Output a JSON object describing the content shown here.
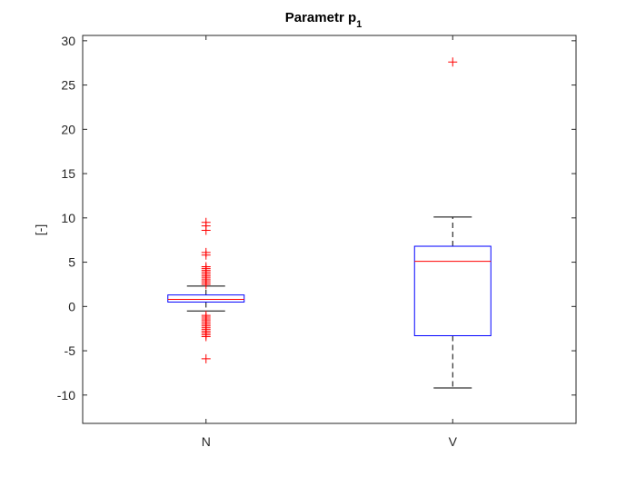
{
  "chart_data": {
    "type": "boxplot",
    "title": "Parametr p",
    "title_subscript": "1",
    "ylabel": "[-]",
    "xlabel": "",
    "ylim": [
      -13.2,
      30.6
    ],
    "yticks": [
      -10,
      -5,
      0,
      5,
      10,
      15,
      20,
      25,
      30
    ],
    "ytick_labels": [
      "-10",
      "-5",
      "0",
      "5",
      "10",
      "15",
      "20",
      "25",
      "30"
    ],
    "categories": [
      "N",
      "V"
    ],
    "grid": false,
    "colors": {
      "box": "#0000ff",
      "median": "#ff0000",
      "whisker": "#000000",
      "outlier": "#ff0000",
      "axes": "#262626"
    },
    "boxes": [
      {
        "category": "N",
        "q1": 0.5,
        "median": 0.8,
        "q3": 1.3,
        "whisker_low": -0.5,
        "whisker_high": 2.3,
        "outliers": [
          9.5,
          9.1,
          8.6,
          6.1,
          5.8,
          4.5,
          4.3,
          4.1,
          3.9,
          3.7,
          3.5,
          3.3,
          3.1,
          2.9,
          2.7,
          2.5,
          -1.0,
          -1.2,
          -1.4,
          -1.6,
          -1.8,
          -2.0,
          -2.2,
          -2.4,
          -2.6,
          -2.8,
          -3.0,
          -3.2,
          -3.4,
          -5.9
        ]
      },
      {
        "category": "V",
        "q1": -3.3,
        "median": 5.1,
        "q3": 6.8,
        "whisker_low": -9.2,
        "whisker_high": 10.1,
        "outliers": [
          27.6
        ]
      }
    ]
  }
}
